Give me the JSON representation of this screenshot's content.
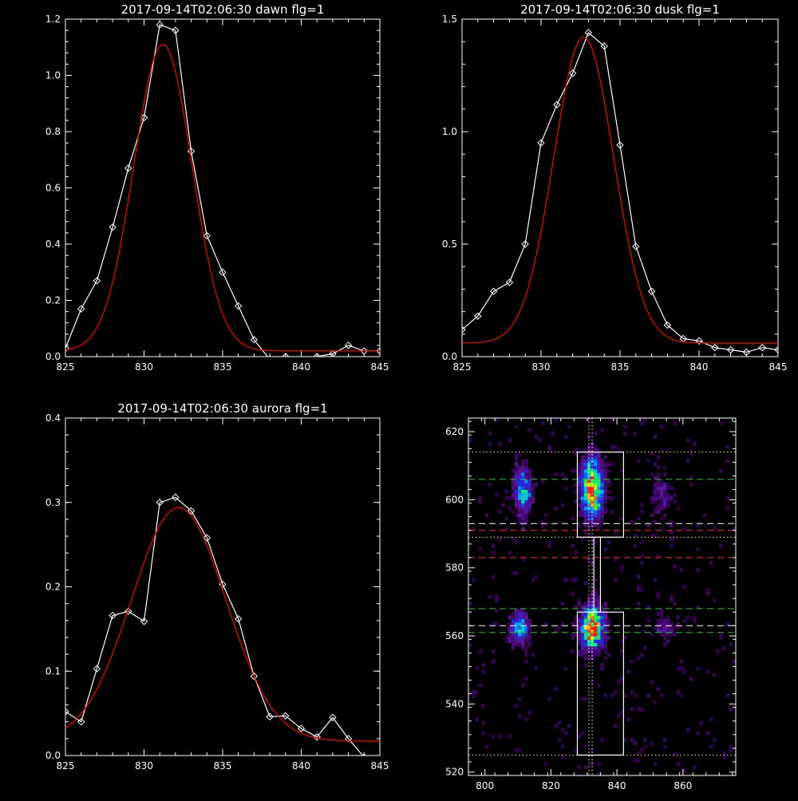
{
  "chart_data": [
    {
      "type": "line",
      "title": "2017-09-14T02:06:30 dawn flg=1",
      "xlim": [
        825,
        845
      ],
      "ylim": [
        0,
        1.2
      ],
      "xticks": [
        825,
        830,
        835,
        840,
        845
      ],
      "yticks": [
        0.0,
        0.2,
        0.4,
        0.6,
        0.8,
        1.0,
        1.2
      ],
      "ytick_labels": [
        "0.0",
        "0.2",
        "0.4",
        "0.6",
        "0.8",
        "1.0",
        "1.2"
      ],
      "series": [
        {
          "color": "#ffffff",
          "marker": "diamond",
          "x": [
            825,
            826,
            827,
            828,
            829,
            830,
            831,
            832,
            833,
            834,
            835,
            836,
            837,
            838,
            839,
            840,
            841,
            842,
            843,
            844,
            845
          ],
          "y": [
            0.03,
            0.17,
            0.27,
            0.46,
            0.67,
            0.85,
            1.18,
            1.16,
            0.73,
            0.43,
            0.3,
            0.18,
            0.06,
            -0.01,
            0.0,
            -0.01,
            0.0,
            0.01,
            0.04,
            0.02,
            0.02
          ]
        },
        {
          "color": "#ff0000",
          "marker": "none",
          "fit": "gaussian",
          "gauss": {
            "amplitude": 1.09,
            "center": 831.2,
            "sigma": 1.85,
            "offset": 0.02
          }
        }
      ]
    },
    {
      "type": "line",
      "title": "2017-09-14T02:06:30 dusk flg=1",
      "xlim": [
        825,
        845
      ],
      "ylim": [
        0,
        1.5
      ],
      "xticks": [
        825,
        830,
        835,
        840,
        845
      ],
      "yticks": [
        0.0,
        0.5,
        1.0,
        1.5
      ],
      "ytick_labels": [
        "0.0",
        "0.5",
        "1.0",
        "1.5"
      ],
      "series": [
        {
          "color": "#ffffff",
          "marker": "diamond",
          "x": [
            825,
            826,
            827,
            828,
            829,
            830,
            831,
            832,
            833,
            834,
            835,
            836,
            837,
            838,
            839,
            840,
            841,
            842,
            843,
            844,
            845
          ],
          "y": [
            0.12,
            0.18,
            0.29,
            0.33,
            0.5,
            0.95,
            1.12,
            1.26,
            1.44,
            1.38,
            0.94,
            0.49,
            0.29,
            0.14,
            0.08,
            0.07,
            0.04,
            0.03,
            0.02,
            0.04,
            0.03
          ]
        },
        {
          "color": "#ff0000",
          "marker": "none",
          "fit": "gaussian",
          "gauss": {
            "amplitude": 1.36,
            "center": 832.7,
            "sigma": 1.9,
            "offset": 0.06
          }
        }
      ]
    },
    {
      "type": "line",
      "title": "2017-09-14T02:06:30 aurora flg=1",
      "xlim": [
        825,
        845
      ],
      "ylim": [
        0,
        0.4
      ],
      "xticks": [
        825,
        830,
        835,
        840,
        845
      ],
      "yticks": [
        0.0,
        0.1,
        0.2,
        0.3,
        0.4
      ],
      "ytick_labels": [
        "0.0",
        "0.1",
        "0.2",
        "0.3",
        "0.4"
      ],
      "series": [
        {
          "color": "#ffffff",
          "marker": "diamond",
          "x": [
            825,
            826,
            827,
            828,
            829,
            830,
            831,
            832,
            833,
            834,
            835,
            836,
            837,
            838,
            839,
            840,
            841,
            842,
            843,
            844,
            845
          ],
          "y": [
            0.052,
            0.04,
            0.103,
            0.166,
            0.171,
            0.159,
            0.3,
            0.306,
            0.29,
            0.258,
            0.203,
            0.162,
            0.094,
            0.046,
            0.047,
            0.032,
            0.022,
            0.045,
            0.02,
            -0.002,
            -0.005
          ]
        },
        {
          "color": "#ff0000",
          "marker": "none",
          "fit": "gaussian",
          "gauss": {
            "amplitude": 0.277,
            "center": 832.2,
            "sigma": 3.0,
            "offset": 0.017
          }
        }
      ]
    },
    {
      "type": "heatmap",
      "title": "",
      "xlim": [
        795,
        876
      ],
      "ylim": [
        519,
        624
      ],
      "xticks": [
        800,
        820,
        840,
        860
      ],
      "yticks": [
        520,
        540,
        560,
        580,
        600,
        620
      ],
      "colormap": "rainbow",
      "blobs": [
        {
          "x": 811,
          "y": 602,
          "sx": 1.8,
          "sy": 5.0,
          "amp": 0.55
        },
        {
          "x": 832,
          "y": 603,
          "sx": 2.2,
          "sy": 6.0,
          "amp": 0.92
        },
        {
          "x": 853,
          "y": 601,
          "sx": 2.0,
          "sy": 4.0,
          "amp": 0.22
        },
        {
          "x": 810,
          "y": 562,
          "sx": 2.0,
          "sy": 3.2,
          "amp": 0.55
        },
        {
          "x": 832,
          "y": 562,
          "sx": 2.4,
          "sy": 4.2,
          "amp": 1.0
        },
        {
          "x": 854,
          "y": 562,
          "sx": 2.0,
          "sy": 2.5,
          "amp": 0.25
        }
      ],
      "hlines": [
        {
          "y": 614,
          "color": "#ffff66",
          "style": "dotted"
        },
        {
          "y": 606,
          "color": "#22cc22",
          "style": "dashed"
        },
        {
          "y": 593,
          "color": "#ffffff",
          "style": "dashed"
        },
        {
          "y": 591,
          "color": "#ff3333",
          "style": "dashed"
        },
        {
          "y": 589,
          "color": "#ffff66",
          "style": "dotted"
        },
        {
          "y": 583,
          "color": "#ff3333",
          "style": "dashed"
        },
        {
          "y": 568,
          "color": "#22cc22",
          "style": "dashed"
        },
        {
          "y": 563,
          "color": "#ffffff",
          "style": "dashed"
        },
        {
          "y": 561,
          "color": "#22cc22",
          "style": "dashed"
        },
        {
          "y": 525,
          "color": "#ffff66",
          "style": "dotted"
        }
      ],
      "vlines": [
        {
          "x": 831.5,
          "color": "#ffff66",
          "style": "dotted"
        },
        {
          "x": 832.5,
          "color": "#ffffff",
          "style": "dotted"
        }
      ],
      "boxes": [
        {
          "x1": 828,
          "x2": 842,
          "y1": 589,
          "y2": 614
        },
        {
          "x1": 828,
          "x2": 842,
          "y1": 525,
          "y2": 567
        },
        {
          "x1": 833,
          "x2": 835,
          "y1": 567,
          "y2": 589
        }
      ]
    }
  ]
}
